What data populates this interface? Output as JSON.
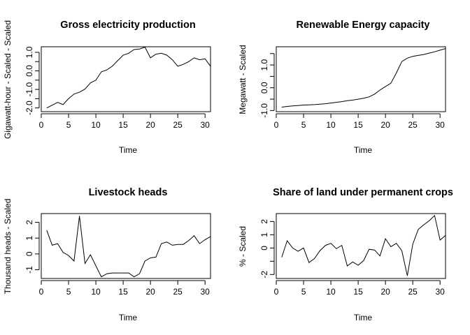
{
  "chart_data": [
    {
      "type": "line",
      "title": "Gross electricity production",
      "xlabel": "Time",
      "ylabel": "Gigawatt-hour - Scaled - Scaled",
      "xlim": [
        0,
        31
      ],
      "ylim": [
        -2.2,
        1.3
      ],
      "xticks": [
        0,
        5,
        10,
        15,
        20,
        25,
        30
      ],
      "yticks": [
        -2.0,
        -1.5,
        -1.0,
        -0.5,
        0.0,
        0.5,
        1.0
      ],
      "ytick_labels": [
        "-2.0",
        "",
        "-1.0",
        "",
        "0.0",
        "",
        "1.0"
      ],
      "x": [
        1,
        2,
        3,
        4,
        5,
        6,
        7,
        8,
        9,
        10,
        11,
        12,
        13,
        14,
        15,
        16,
        17,
        18,
        19,
        20,
        21,
        22,
        23,
        24,
        25,
        26,
        27,
        28,
        29,
        30,
        31
      ],
      "values": [
        -2.0,
        -1.85,
        -1.7,
        -1.82,
        -1.5,
        -1.25,
        -1.15,
        -0.98,
        -0.65,
        -0.5,
        -0.05,
        0.05,
        0.25,
        0.55,
        0.85,
        0.95,
        1.15,
        1.18,
        1.28,
        0.7,
        0.9,
        0.95,
        0.85,
        0.6,
        0.25,
        0.35,
        0.5,
        0.7,
        0.6,
        0.65,
        0.25
      ]
    },
    {
      "type": "line",
      "title": "Renewable Energy capacity",
      "xlabel": "Time",
      "ylabel": "Megawatt - Scaled",
      "xlim": [
        0,
        31
      ],
      "ylim": [
        -1.05,
        1.8
      ],
      "xticks": [
        0,
        5,
        10,
        15,
        20,
        25,
        30
      ],
      "yticks": [
        -1.0,
        -0.5,
        0.0,
        0.5,
        1.0,
        1.5
      ],
      "ytick_labels": [
        "-1.0",
        "",
        "0.0",
        "",
        "1.0",
        ""
      ],
      "x": [
        1,
        2,
        3,
        4,
        5,
        6,
        7,
        8,
        9,
        10,
        11,
        12,
        13,
        14,
        15,
        16,
        17,
        18,
        19,
        20,
        21,
        22,
        23,
        24,
        25,
        26,
        27,
        28,
        29,
        30,
        31
      ],
      "values": [
        -0.85,
        -0.82,
        -0.8,
        -0.78,
        -0.76,
        -0.75,
        -0.74,
        -0.72,
        -0.7,
        -0.67,
        -0.64,
        -0.61,
        -0.57,
        -0.54,
        -0.5,
        -0.46,
        -0.4,
        -0.28,
        -0.1,
        0.05,
        0.2,
        0.65,
        1.15,
        1.3,
        1.38,
        1.42,
        1.46,
        1.52,
        1.58,
        1.65,
        1.72
      ]
    },
    {
      "type": "line",
      "title": "Livestock heads",
      "xlabel": "Time",
      "ylabel": "Thousand heads - Scaled",
      "xlim": [
        0,
        31
      ],
      "ylim": [
        -1.55,
        2.55
      ],
      "xticks": [
        0,
        5,
        10,
        15,
        20,
        25,
        30
      ],
      "yticks": [
        -1,
        0,
        1,
        2
      ],
      "ytick_labels": [
        "-1",
        "0",
        "1",
        "2"
      ],
      "x": [
        1,
        2,
        3,
        4,
        5,
        6,
        7,
        8,
        9,
        10,
        11,
        12,
        13,
        14,
        15,
        16,
        17,
        18,
        19,
        20,
        21,
        22,
        23,
        24,
        25,
        26,
        27,
        28,
        29,
        30,
        31
      ],
      "values": [
        1.5,
        0.55,
        0.65,
        0.1,
        -0.1,
        -0.45,
        2.4,
        -0.6,
        -0.05,
        -0.75,
        -1.45,
        -1.25,
        -1.2,
        -1.2,
        -1.2,
        -1.2,
        -1.45,
        -1.25,
        -0.45,
        -0.25,
        -0.2,
        0.65,
        0.75,
        0.55,
        0.6,
        0.6,
        0.85,
        1.15,
        0.65,
        0.9,
        1.1
      ]
    },
    {
      "type": "line",
      "title": "Share of land under permanent crops",
      "xlabel": "Time",
      "ylabel": "% - Scaled",
      "xlim": [
        0,
        31
      ],
      "ylim": [
        -2.3,
        2.6
      ],
      "xticks": [
        0,
        5,
        10,
        15,
        20,
        25,
        30
      ],
      "yticks": [
        -2,
        -1,
        0,
        1,
        2
      ],
      "ytick_labels": [
        "-2",
        "",
        "0",
        "1",
        "2"
      ],
      "x": [
        1,
        2,
        3,
        4,
        5,
        6,
        7,
        8,
        9,
        10,
        11,
        12,
        13,
        14,
        15,
        16,
        17,
        18,
        19,
        20,
        21,
        22,
        23,
        24,
        25,
        26,
        27,
        28,
        29,
        30,
        31
      ],
      "values": [
        -0.7,
        0.55,
        0.0,
        -0.25,
        0.0,
        -1.1,
        -0.8,
        -0.2,
        0.2,
        0.35,
        -0.05,
        0.2,
        -1.35,
        -1.05,
        -1.3,
        -0.95,
        -0.1,
        -0.15,
        -0.6,
        0.7,
        0.1,
        0.35,
        -0.2,
        -2.1,
        0.3,
        1.4,
        1.75,
        2.05,
        2.45,
        0.6,
        0.95
      ]
    }
  ]
}
